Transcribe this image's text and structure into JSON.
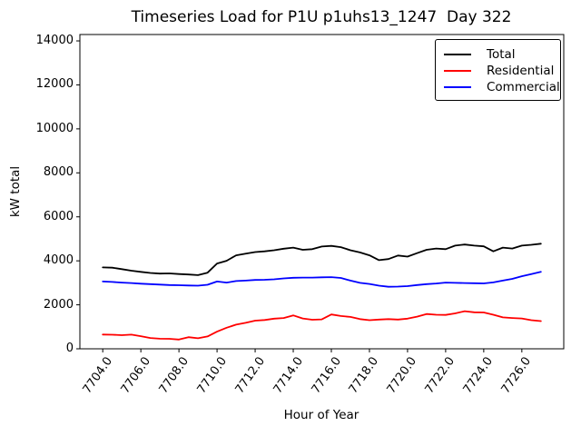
{
  "colors": {
    "background": "#ffffff",
    "axes": "#000000",
    "text": "#000000",
    "total_line": "#000000",
    "residential_line": "#ff0000",
    "commercial_line": "#0000ff"
  },
  "chart_data": {
    "type": "line",
    "title": "Timeseries Load for P1U p1uhs13_1247  Day 322",
    "xlabel": "Hour of Year",
    "ylabel": "kW total",
    "xlim": [
      7702.8,
      7728.2
    ],
    "ylim": [
      0,
      14290
    ],
    "grid": false,
    "legend_position": "upper right",
    "xticks": {
      "values": [
        7704,
        7706,
        7708,
        7710,
        7712,
        7714,
        7716,
        7718,
        7720,
        7722,
        7724,
        7726
      ],
      "labels": [
        "7704.0",
        "7706.0",
        "7708.0",
        "7710.0",
        "7712.0",
        "7714.0",
        "7716.0",
        "7718.0",
        "7720.0",
        "7722.0",
        "7724.0",
        "7726.0"
      ]
    },
    "yticks": {
      "values": [
        0,
        2000,
        4000,
        6000,
        8000,
        10000,
        12000,
        14000
      ],
      "labels": [
        "0",
        "2000",
        "4000",
        "6000",
        "8000",
        "10000",
        "12000",
        "14000"
      ]
    },
    "x": [
      7704.0,
      7704.5,
      7705.0,
      7705.5,
      7706.0,
      7706.5,
      7707.0,
      7707.5,
      7708.0,
      7708.5,
      7709.0,
      7709.5,
      7710.0,
      7710.5,
      7711.0,
      7711.5,
      7712.0,
      7712.5,
      7713.0,
      7713.5,
      7714.0,
      7714.5,
      7715.0,
      7715.5,
      7716.0,
      7716.5,
      7717.0,
      7717.5,
      7718.0,
      7718.5,
      7719.0,
      7719.5,
      7720.0,
      7720.5,
      7721.0,
      7721.5,
      7722.0,
      7722.5,
      7723.0,
      7723.5,
      7724.0,
      7724.5,
      7725.0,
      7725.5,
      7726.0,
      7726.5,
      7727.0
    ],
    "series": [
      {
        "name": "Total",
        "color": "#000000",
        "values": [
          3700,
          3690,
          3620,
          3550,
          3500,
          3450,
          3420,
          3430,
          3400,
          3380,
          3350,
          3460,
          3880,
          4000,
          4250,
          4330,
          4400,
          4430,
          4480,
          4550,
          4600,
          4500,
          4530,
          4650,
          4680,
          4620,
          4480,
          4380,
          4250,
          4030,
          4080,
          4240,
          4190,
          4350,
          4500,
          4560,
          4530,
          4690,
          4740,
          4690,
          4660,
          4430,
          4600,
          4560,
          4690,
          4730,
          4780
        ]
      },
      {
        "name": "Residential",
        "color": "#ff0000",
        "values": [
          650,
          640,
          620,
          645,
          575,
          490,
          460,
          455,
          420,
          530,
          480,
          560,
          780,
          960,
          1100,
          1180,
          1280,
          1310,
          1370,
          1400,
          1520,
          1380,
          1320,
          1340,
          1560,
          1490,
          1450,
          1350,
          1300,
          1330,
          1350,
          1330,
          1370,
          1460,
          1580,
          1550,
          1540,
          1610,
          1710,
          1660,
          1650,
          1550,
          1430,
          1400,
          1380,
          1300,
          1260
        ]
      },
      {
        "name": "Commercial",
        "color": "#0000ff",
        "values": [
          3060,
          3040,
          3010,
          2990,
          2960,
          2940,
          2920,
          2900,
          2890,
          2880,
          2870,
          2910,
          3060,
          3010,
          3080,
          3100,
          3130,
          3140,
          3160,
          3200,
          3230,
          3240,
          3240,
          3250,
          3260,
          3220,
          3100,
          3000,
          2950,
          2870,
          2820,
          2830,
          2850,
          2900,
          2940,
          2970,
          3010,
          3000,
          2990,
          2980,
          2975,
          3020,
          3100,
          3180,
          3300,
          3400,
          3500
        ]
      }
    ]
  }
}
